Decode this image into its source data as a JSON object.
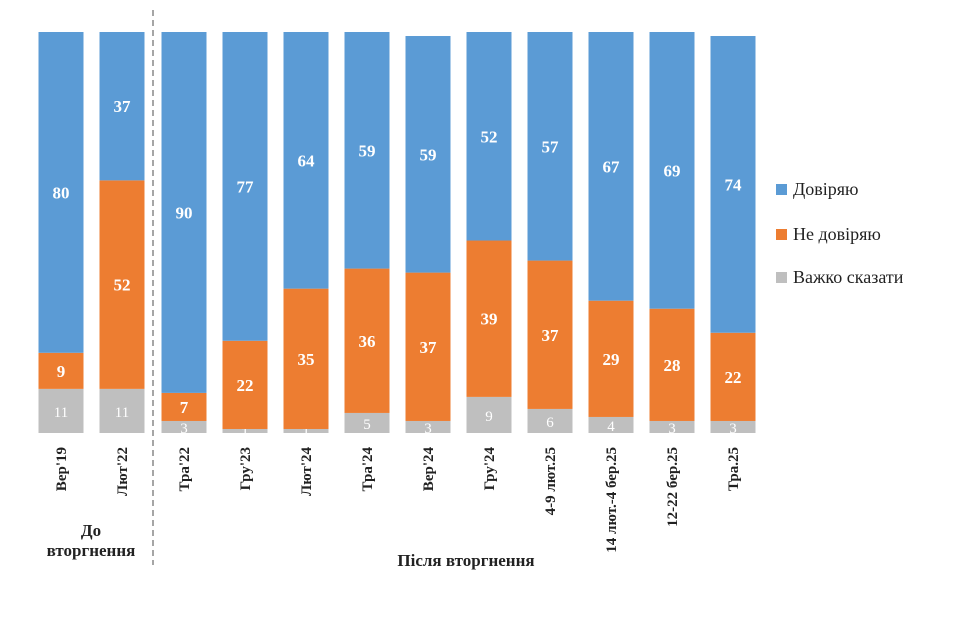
{
  "chart_data": {
    "type": "bar",
    "stacked": true,
    "categories": [
      "Вер'19",
      "Лют'22",
      "Тра'22",
      "Гру'23",
      "Лют'24",
      "Тра'24",
      "Вер'24",
      "Гру'24",
      "4-9 лют.25",
      "14 лют.-4 бер.25",
      "12-22 бер.25",
      "Тра.25"
    ],
    "series": [
      {
        "name": "Довіряю",
        "color": "#5B9BD5",
        "values": [
          80,
          37,
          90,
          77,
          64,
          59,
          59,
          52,
          57,
          67,
          69,
          74
        ]
      },
      {
        "name": "Не довіряю",
        "color": "#ED7D31",
        "values": [
          9,
          52,
          7,
          22,
          35,
          36,
          37,
          39,
          37,
          29,
          28,
          22
        ]
      },
      {
        "name": "Важко сказати",
        "color": "#BFBFBF",
        "values": [
          11,
          11,
          3,
          1,
          1,
          5,
          3,
          9,
          6,
          4,
          3,
          3
        ]
      }
    ],
    "groups": [
      {
        "label_lines": [
          "До",
          "вторгнення"
        ],
        "first": 0,
        "last": 1
      },
      {
        "label_lines": [
          "Після вторгнення"
        ],
        "first": 2,
        "last": 11
      }
    ],
    "legend_position": "right",
    "grid": false,
    "ylim": [
      0,
      100
    ]
  }
}
